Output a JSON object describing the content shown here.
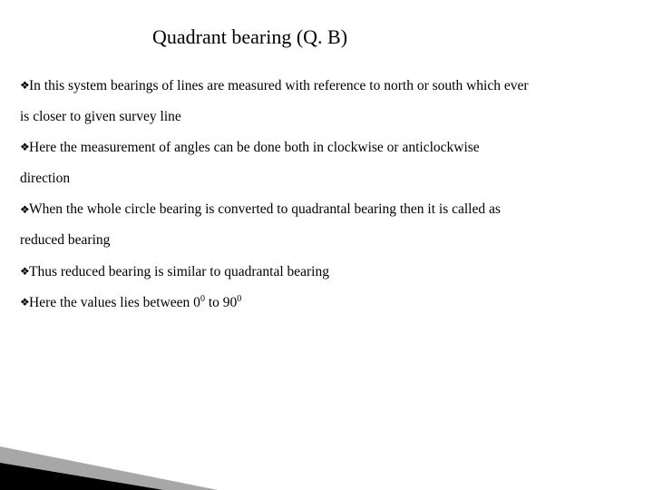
{
  "title_fontsize": 22,
  "body_fontsize": 15.5,
  "body_line_height": 2.2,
  "text_color": "#000000",
  "background_color": "#ffffff",
  "bullet_glyph": "❖",
  "bullet_color": "#000000",
  "triangle_far_color": "#5f5f5f",
  "triangle_near_color": "#000000",
  "title": "Quadrant bearing (Q. B)",
  "bullets": {
    "b0_a": "In this system bearings of lines are measured with reference to north or south  which ever",
    "b0_b": "is closer to given survey line",
    "b1_a": "Here the measurement of angles can be done both in clockwise or anticlockwise",
    "b1_b": "direction",
    "b2_a": "When the whole circle bearing is converted to quadrantal bearing then it is called as",
    "b2_b": "reduced bearing",
    "b3_a": "Thus reduced bearing is similar to quadrantal bearing",
    "b4_prefix": "Here  the values lies between 0",
    "b4_mid": " to 90",
    "deg": "0"
  }
}
